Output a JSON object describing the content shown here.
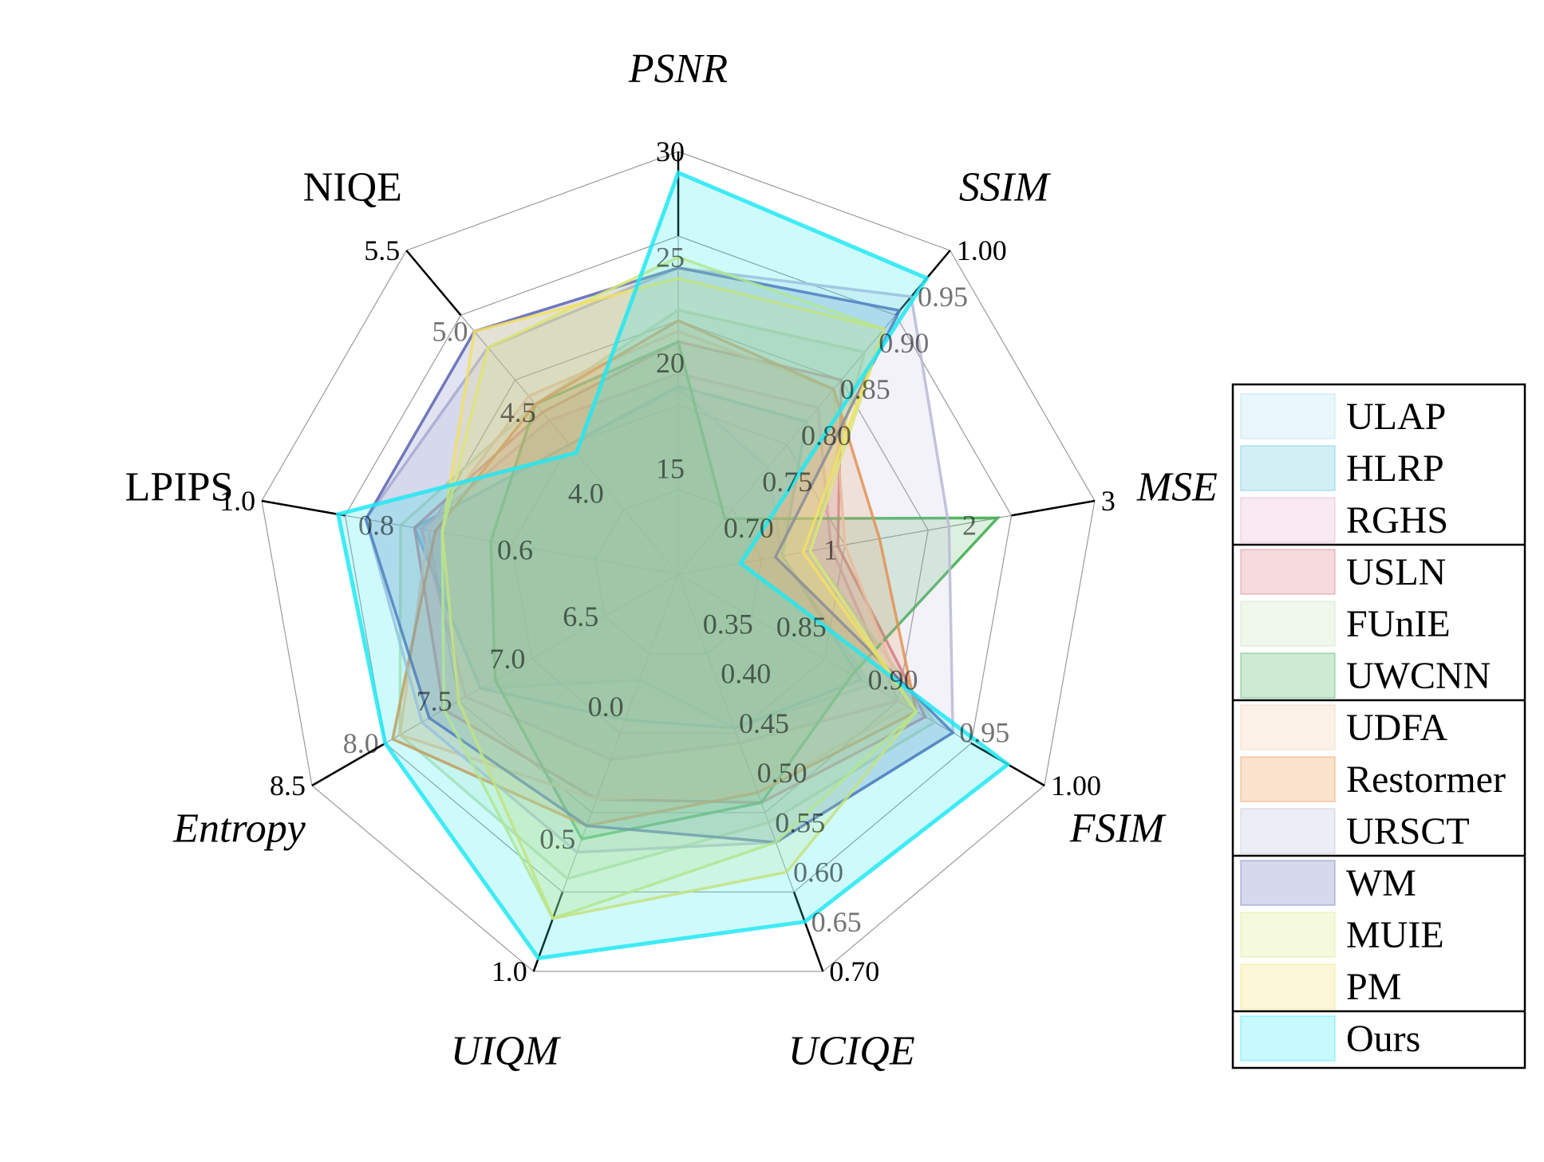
{
  "chart_data": {
    "type": "radar",
    "title": "",
    "grid": true,
    "legend_position": "right",
    "axes": [
      {
        "name": "PSNR",
        "italic": true,
        "ticks": [
          "15",
          "20",
          "25",
          "30"
        ],
        "range": [
          10,
          30
        ]
      },
      {
        "name": "SSIM",
        "italic": true,
        "ticks": [
          "0.70",
          "0.75",
          "0.80",
          "0.85",
          "0.90",
          "0.95",
          "1.00"
        ],
        "range": [
          0.65,
          1.0
        ]
      },
      {
        "name": "MSE",
        "italic": true,
        "ticks": [
          "1",
          "2",
          "3"
        ],
        "range": [
          0,
          3
        ]
      },
      {
        "name": "FSIM",
        "italic": true,
        "ticks": [
          "0.85",
          "0.90",
          "0.95",
          "1.00"
        ],
        "range": [
          0.8,
          1.0
        ]
      },
      {
        "name": "UCIQE",
        "italic": true,
        "ticks": [
          "0.35",
          "0.40",
          "0.45",
          "0.50",
          "0.55",
          "0.60",
          "0.65",
          "0.70"
        ],
        "range": [
          0.3,
          0.7
        ]
      },
      {
        "name": "UIQM",
        "italic": true,
        "ticks": [
          "0.0",
          "0.5",
          "1.0"
        ],
        "range": [
          -0.5,
          1.0
        ]
      },
      {
        "name": "Entropy",
        "italic": true,
        "ticks": [
          "6.5",
          "7.0",
          "7.5",
          "8.0",
          "8.5"
        ],
        "range": [
          6.0,
          8.5
        ]
      },
      {
        "name": "LPIPS",
        "italic": false,
        "ticks": [
          "0.6",
          "0.8",
          "1.0"
        ],
        "range": [
          0.4,
          1.0
        ]
      },
      {
        "name": "NIQE",
        "italic": false,
        "ticks": [
          "4.0",
          "4.5",
          "5.0",
          "5.5"
        ],
        "range": [
          3.5,
          5.5
        ]
      }
    ],
    "series": [
      {
        "name": "ULAP",
        "color": "#a6dcec",
        "values": [
          18.8,
          0.765,
          0.75,
          0.905,
          0.455,
          -0.1,
          7.35,
          0.78,
          4.3
        ]
      },
      {
        "name": "HLRP",
        "color": "#4fbfdc",
        "values": [
          18.9,
          0.815,
          0.75,
          0.9,
          0.455,
          0.05,
          7.35,
          0.78,
          4.3
        ]
      },
      {
        "name": "RGHS",
        "color": "#e6a6c4",
        "values": [
          19.5,
          0.83,
          1.1,
          0.92,
          0.47,
          0.2,
          7.45,
          0.77,
          4.45
        ]
      },
      {
        "name": "USLN",
        "color": "#d96b7d",
        "values": [
          21.0,
          0.86,
          1.15,
          0.935,
          0.53,
          0.35,
          7.6,
          0.78,
          4.5
        ]
      },
      {
        "name": "FUnIE",
        "color": "#c4dfae",
        "values": [
          22.5,
          0.89,
          0.95,
          0.94,
          0.55,
          0.65,
          7.9,
          0.8,
          4.55
        ]
      },
      {
        "name": "UWCNN",
        "color": "#3aaa4a",
        "values": [
          21.0,
          0.71,
          2.3,
          0.895,
          0.53,
          0.5,
          7.25,
          0.67,
          4.55
        ]
      },
      {
        "name": "UDFA",
        "color": "#f2c8a0",
        "values": [
          21.5,
          0.85,
          1.2,
          0.925,
          0.52,
          0.35,
          7.9,
          0.76,
          4.6
        ]
      },
      {
        "name": "Restormer",
        "color": "#ec8a38",
        "values": [
          22.0,
          0.85,
          1.45,
          0.93,
          0.52,
          0.45,
          7.95,
          0.75,
          4.55
        ]
      },
      {
        "name": "URSCT",
        "color": "#b8b8d8",
        "values": [
          24.5,
          0.95,
          1.95,
          0.95,
          0.57,
          0.55,
          7.75,
          0.85,
          4.9
        ]
      },
      {
        "name": "WM",
        "color": "#5a63b2",
        "values": [
          24.5,
          0.935,
          0.7,
          0.95,
          0.57,
          0.45,
          7.7,
          0.85,
          5.0
        ]
      },
      {
        "name": "MUIE",
        "color": "#d8e878",
        "values": [
          25.0,
          0.915,
          0.95,
          0.93,
          0.57,
          0.8,
          7.6,
          0.74,
          4.9
        ]
      },
      {
        "name": "PM",
        "color": "#f2e060",
        "values": [
          24.0,
          0.915,
          0.9,
          0.93,
          0.6,
          0.8,
          7.5,
          0.74,
          5.0
        ]
      },
      {
        "name": "Ours",
        "color": "#22e8f2",
        "values": [
          29.0,
          0.97,
          0.45,
          0.98,
          0.65,
          0.95,
          8.0,
          0.89,
          4.25
        ]
      }
    ]
  },
  "legend": {
    "groups": [
      [
        "ULAP",
        "HLRP",
        "RGHS"
      ],
      [
        "USLN",
        "FUnIE",
        "UWCNN"
      ],
      [
        "UDFA",
        "Restormer",
        "URSCT"
      ],
      [
        "WM",
        "MUIE",
        "PM"
      ],
      [
        "Ours"
      ]
    ]
  }
}
